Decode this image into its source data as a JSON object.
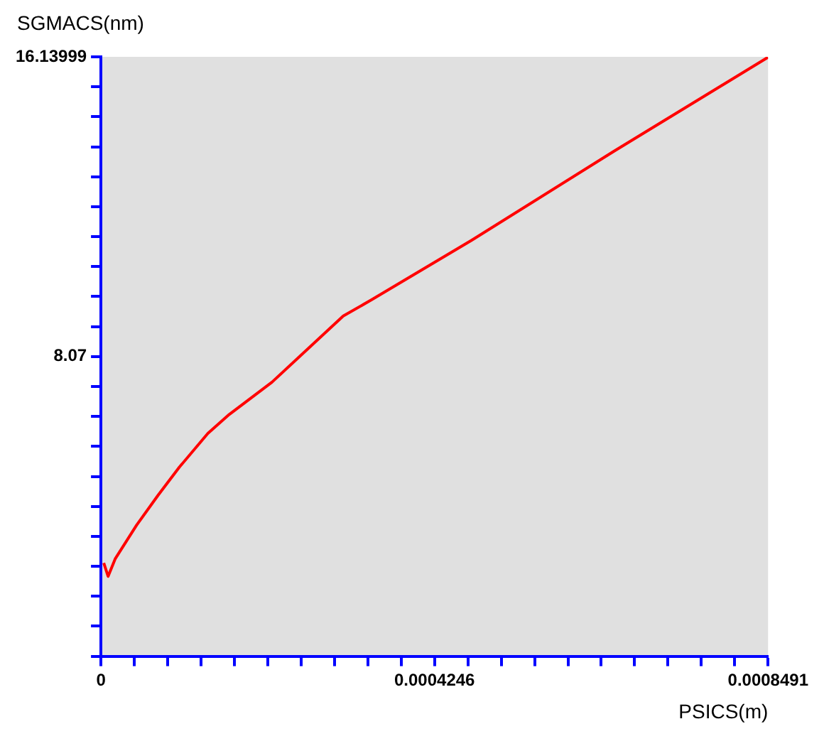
{
  "chart_data": {
    "type": "line",
    "ylabel": "SGMACS(nm)",
    "xlabel": "PSICS(m)",
    "series": [
      {
        "color": "#ff0000",
        "x": [
          3.6e-06,
          9.1e-06,
          1.81e-05,
          4.54e-05,
          7.26e-05,
          9.98e-05,
          0.0001361,
          0.0001633,
          0.0002177,
          0.0003084,
          0.0003447,
          0.0004717,
          0.0006531,
          0.0008491
        ],
        "values": [
          2.51,
          2.15,
          2.62,
          3.53,
          4.33,
          5.09,
          6.0,
          6.51,
          7.38,
          9.16,
          9.6,
          11.2,
          13.6,
          16.13
        ]
      }
    ],
    "xlim": [
      0,
      0.0008491
    ],
    "ylim": [
      0,
      16.13999
    ],
    "xticks": [
      0,
      {
        "value": 4.2455e-05,
        "label": null
      },
      {
        "value": 8.491e-05,
        "label": null
      },
      {
        "value": 0.000127365,
        "label": null
      },
      {
        "value": 0.00016982,
        "label": null
      },
      {
        "value": 0.000212275,
        "label": null
      },
      {
        "value": 0.00025473,
        "label": null
      },
      {
        "value": 0.000297185,
        "label": null
      },
      {
        "value": 0.00033964,
        "label": null
      },
      {
        "value": 0.000382095,
        "label": null
      },
      {
        "value": 0.00042455,
        "label": "0.0004246"
      },
      {
        "value": 0.000467005,
        "label": null
      },
      {
        "value": 0.00050946,
        "label": null
      },
      {
        "value": 0.000551915,
        "label": null
      },
      {
        "value": 0.00059437,
        "label": null
      },
      {
        "value": 0.000636825,
        "label": null
      },
      {
        "value": 0.00067928,
        "label": null
      },
      {
        "value": 0.000721735,
        "label": null
      },
      {
        "value": 0.00076419,
        "label": null
      },
      {
        "value": 0.000806645,
        "label": null
      },
      0.0008491
    ],
    "yticks": [
      {
        "value": 0,
        "label": null
      },
      {
        "value": 0.807,
        "label": null
      },
      {
        "value": 1.614,
        "label": null
      },
      {
        "value": 2.421,
        "label": null
      },
      {
        "value": 3.228,
        "label": null
      },
      {
        "value": 4.035,
        "label": null
      },
      {
        "value": 4.842,
        "label": null
      },
      {
        "value": 5.649,
        "label": null
      },
      {
        "value": 6.456,
        "label": null
      },
      {
        "value": 7.263,
        "label": null
      },
      {
        "value": 8.07,
        "label": "8.07"
      },
      {
        "value": 8.877,
        "label": null
      },
      {
        "value": 9.684,
        "label": null
      },
      {
        "value": 10.491,
        "label": null
      },
      {
        "value": 11.298,
        "label": null
      },
      {
        "value": 12.105,
        "label": null
      },
      {
        "value": 12.912,
        "label": null
      },
      {
        "value": 13.719,
        "label": null
      },
      {
        "value": 14.526,
        "label": null
      },
      {
        "value": 15.333,
        "label": null
      },
      16.13999
    ],
    "grid": false,
    "legend": false,
    "marker": "none",
    "line_style": "solid"
  }
}
